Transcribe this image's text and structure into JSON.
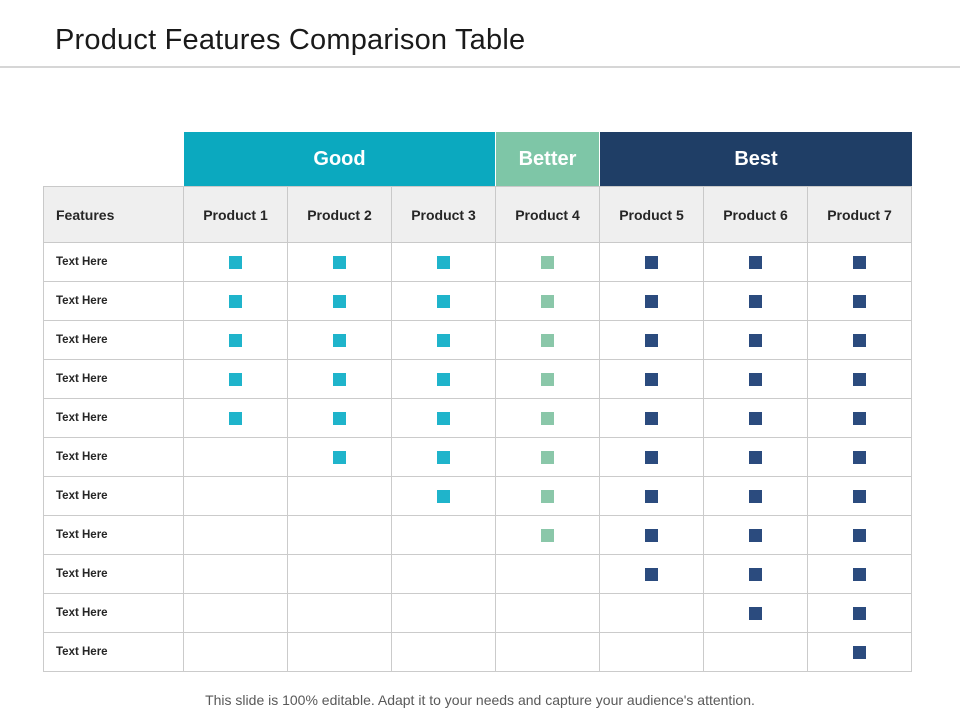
{
  "slide": {
    "title": "Product Features Comparison Table",
    "footer": "This slide is 100% editable. Adapt it to your needs and capture your audience's attention."
  },
  "colors": {
    "good_header": "#0BA9BF",
    "better_header": "#7EC6A7",
    "best_header": "#1F3E66",
    "good_mark": "#1FB4CB",
    "better_mark": "#8AC7A9",
    "best_mark": "#2B4B7E",
    "header_row_bg": "#EFEFEF",
    "border": "#CBCBCB"
  },
  "table": {
    "tiers": [
      {
        "label": "Good",
        "span": 3,
        "key": "good"
      },
      {
        "label": "Better",
        "span": 1,
        "key": "better"
      },
      {
        "label": "Best",
        "span": 3,
        "key": "best"
      }
    ],
    "features_header": "Features",
    "product_headers": [
      "Product 1",
      "Product 2",
      "Product 3",
      "Product 4",
      "Product 5",
      "Product 6",
      "Product 7"
    ],
    "column_tiers": [
      "good",
      "good",
      "good",
      "better",
      "best",
      "best",
      "best"
    ],
    "rows": [
      {
        "label": "Text Here",
        "marks": [
          1,
          1,
          1,
          1,
          1,
          1,
          1
        ]
      },
      {
        "label": "Text Here",
        "marks": [
          1,
          1,
          1,
          1,
          1,
          1,
          1
        ]
      },
      {
        "label": "Text Here",
        "marks": [
          1,
          1,
          1,
          1,
          1,
          1,
          1
        ]
      },
      {
        "label": "Text Here",
        "marks": [
          1,
          1,
          1,
          1,
          1,
          1,
          1
        ]
      },
      {
        "label": "Text Here",
        "marks": [
          1,
          1,
          1,
          1,
          1,
          1,
          1
        ]
      },
      {
        "label": "Text Here",
        "marks": [
          0,
          1,
          1,
          1,
          1,
          1,
          1
        ]
      },
      {
        "label": "Text Here",
        "marks": [
          0,
          0,
          1,
          1,
          1,
          1,
          1
        ]
      },
      {
        "label": "Text Here",
        "marks": [
          0,
          0,
          0,
          1,
          1,
          1,
          1
        ]
      },
      {
        "label": "Text Here",
        "marks": [
          0,
          0,
          0,
          0,
          1,
          1,
          1
        ]
      },
      {
        "label": "Text Here",
        "marks": [
          0,
          0,
          0,
          0,
          0,
          1,
          1
        ]
      },
      {
        "label": "Text Here",
        "marks": [
          0,
          0,
          0,
          0,
          0,
          0,
          1
        ]
      }
    ]
  }
}
